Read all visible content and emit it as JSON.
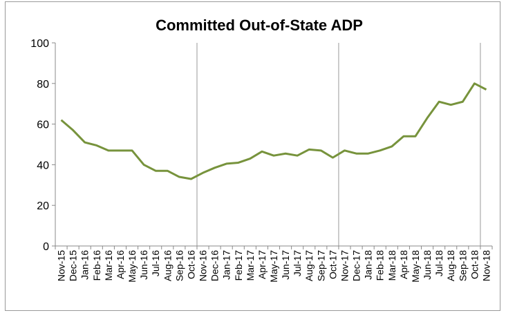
{
  "chart_data": {
    "type": "line",
    "title": "Committed Out-of-State ADP",
    "categories": [
      "Nov-15",
      "Dec-15",
      "Jan-16",
      "Feb-16",
      "Mar-16",
      "Apr-16",
      "May-16",
      "Jun-16",
      "Jul-16",
      "Aug-16",
      "Sep-16",
      "Oct-16",
      "Nov-16",
      "Dec-16",
      "Jan-17",
      "Feb-17",
      "Mar-17",
      "Apr-17",
      "May-17",
      "Jun-17",
      "Jul-17",
      "Aug-17",
      "Sep-17",
      "Oct-17",
      "Nov-17",
      "Dec-17",
      "Jan-18",
      "Feb-18",
      "Mar-18",
      "Apr-18",
      "May-18",
      "Jun-18",
      "Jul-18",
      "Aug-18",
      "Sep-18",
      "Oct-18",
      "Nov-18"
    ],
    "values": [
      62,
      57,
      51,
      49.5,
      47,
      47,
      47,
      40,
      37,
      37,
      34,
      33,
      36,
      38.5,
      40.5,
      41,
      43,
      46.5,
      44.5,
      45.5,
      44.5,
      47.5,
      47,
      43.5,
      47,
      45.5,
      45.5,
      47,
      49,
      54,
      54,
      63,
      71,
      69.5,
      71,
      80,
      77
    ],
    "color": "#77933c",
    "ylim": [
      0,
      100
    ],
    "yticks": [
      0,
      20,
      40,
      60,
      80,
      100
    ]
  }
}
